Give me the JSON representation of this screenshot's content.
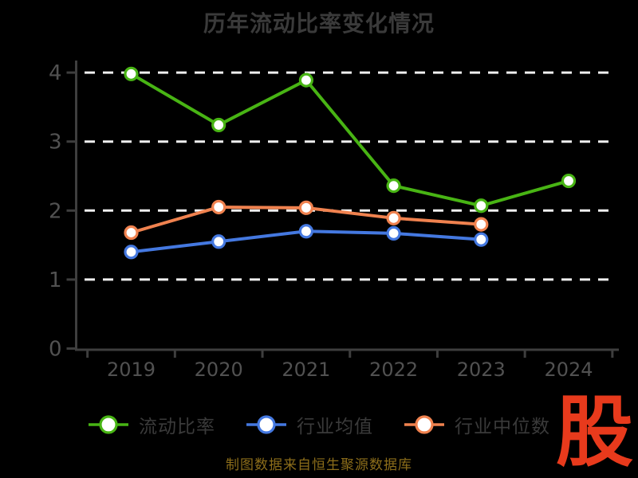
{
  "title": "历年流动比率变化情况",
  "attribution": "制图数据来自恒生聚源数据库",
  "logo_text": "股",
  "colors": {
    "background": "#000000",
    "title": "#3a3a3a",
    "axis": "#3e3e3e",
    "tick_label": "#515151",
    "grid": "#efefef",
    "legend_label": "#3a3a3a",
    "attribution": "#8c6d1a",
    "logo": "#e83a1c",
    "marker_fill": "#ffffff"
  },
  "chart_data": {
    "type": "line",
    "title": "历年流动比率变化情况",
    "categories": [
      "2019",
      "2020",
      "2021",
      "2022",
      "2023",
      "2024"
    ],
    "series": [
      {
        "name": "流动比率",
        "color": "#48b414",
        "values": [
          3.98,
          3.24,
          3.89,
          2.36,
          2.07,
          2.43
        ]
      },
      {
        "name": "行业均值",
        "color": "#4478e0",
        "values": [
          1.4,
          1.55,
          1.7,
          1.67,
          1.58,
          null
        ]
      },
      {
        "name": "行业中位数",
        "color": "#f0824f",
        "values": [
          1.68,
          2.05,
          2.04,
          1.89,
          1.8,
          null
        ]
      }
    ],
    "xlabel": "",
    "ylabel": "",
    "ylim": [
      0,
      4
    ],
    "yticks": [
      0,
      1,
      2,
      3,
      4
    ],
    "grid": "horizontal-dashed-white",
    "legend_position": "bottom",
    "marker": "circle-white-fill"
  }
}
